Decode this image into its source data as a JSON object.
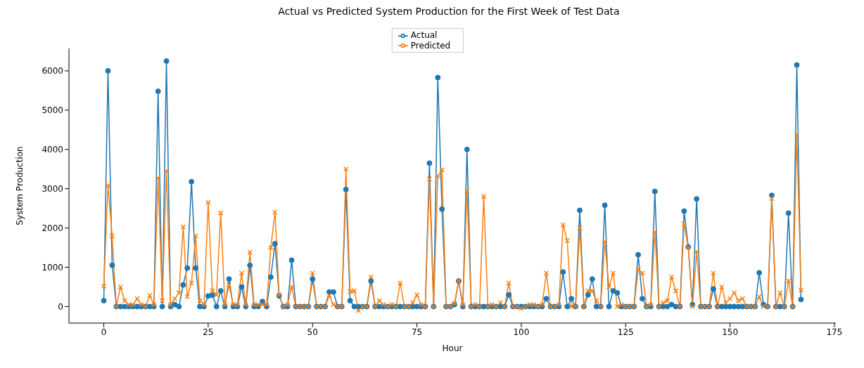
{
  "chart_data": {
    "type": "line",
    "title": "Actual vs Predicted System Production for the First Week of Test Data",
    "xlabel": "Hour",
    "ylabel": "System Production",
    "x": [
      0,
      1,
      2,
      3,
      4,
      5,
      6,
      7,
      8,
      9,
      10,
      11,
      12,
      13,
      14,
      15,
      16,
      17,
      18,
      19,
      20,
      21,
      22,
      23,
      24,
      25,
      26,
      27,
      28,
      29,
      30,
      31,
      32,
      33,
      34,
      35,
      36,
      37,
      38,
      39,
      40,
      41,
      42,
      43,
      44,
      45,
      46,
      47,
      48,
      49,
      50,
      51,
      52,
      53,
      54,
      55,
      56,
      57,
      58,
      59,
      60,
      61,
      62,
      63,
      64,
      65,
      66,
      67,
      68,
      69,
      70,
      71,
      72,
      73,
      74,
      75,
      76,
      77,
      78,
      79,
      80,
      81,
      82,
      83,
      84,
      85,
      86,
      87,
      88,
      89,
      90,
      91,
      92,
      93,
      94,
      95,
      96,
      97,
      98,
      99,
      100,
      101,
      102,
      103,
      104,
      105,
      106,
      107,
      108,
      109,
      110,
      111,
      112,
      113,
      114,
      115,
      116,
      117,
      118,
      119,
      120,
      121,
      122,
      123,
      124,
      125,
      126,
      127,
      128,
      129,
      130,
      131,
      132,
      133,
      134,
      135,
      136,
      137,
      138,
      139,
      140,
      141,
      142,
      143,
      144,
      145,
      146,
      147,
      148,
      149,
      150,
      151,
      152,
      153,
      154,
      155,
      156,
      157,
      158,
      159,
      160,
      161,
      162,
      163,
      164,
      165,
      166,
      167
    ],
    "series": [
      {
        "name": "Actual",
        "color": "#1f77b4",
        "marker": "circle",
        "values": [
          150,
          6000,
          1050,
          0,
          0,
          0,
          0,
          0,
          0,
          0,
          0,
          0,
          0,
          5480,
          0,
          6250,
          0,
          50,
          0,
          550,
          980,
          3180,
          980,
          0,
          0,
          270,
          290,
          0,
          400,
          0,
          700,
          0,
          0,
          500,
          0,
          1050,
          0,
          0,
          130,
          0,
          750,
          1600,
          270,
          0,
          0,
          1180,
          0,
          0,
          0,
          0,
          700,
          0,
          0,
          0,
          370,
          370,
          0,
          0,
          2980,
          150,
          0,
          0,
          0,
          0,
          650,
          0,
          0,
          0,
          0,
          0,
          0,
          0,
          0,
          0,
          0,
          0,
          0,
          0,
          3650,
          0,
          5830,
          2480,
          0,
          0,
          50,
          650,
          0,
          4000,
          0,
          0,
          0,
          0,
          0,
          0,
          0,
          0,
          0,
          300,
          0,
          0,
          0,
          0,
          0,
          0,
          0,
          0,
          200,
          0,
          0,
          0,
          880,
          0,
          200,
          0,
          2450,
          0,
          300,
          700,
          0,
          0,
          2580,
          0,
          400,
          350,
          0,
          0,
          0,
          0,
          1320,
          200,
          0,
          0,
          2930,
          0,
          0,
          0,
          50,
          0,
          0,
          2430,
          1520,
          50,
          2740,
          0,
          0,
          0,
          450,
          0,
          0,
          0,
          0,
          0,
          0,
          0,
          0,
          0,
          0,
          860,
          50,
          0,
          2830,
          0,
          0,
          0,
          2380,
          0,
          6150,
          180
        ]
      },
      {
        "name": "Predicted",
        "color": "#ff7f0e",
        "marker": "cross",
        "values": [
          520,
          3080,
          1800,
          0,
          500,
          150,
          50,
          50,
          200,
          50,
          0,
          280,
          50,
          3270,
          150,
          3450,
          50,
          200,
          350,
          2030,
          250,
          600,
          1800,
          150,
          50,
          2650,
          400,
          300,
          2380,
          50,
          550,
          50,
          50,
          850,
          50,
          1380,
          50,
          50,
          50,
          50,
          1500,
          2400,
          300,
          0,
          50,
          500,
          0,
          0,
          0,
          0,
          850,
          0,
          0,
          0,
          280,
          50,
          0,
          0,
          3500,
          380,
          400,
          -100,
          0,
          0,
          750,
          0,
          150,
          50,
          0,
          50,
          0,
          600,
          0,
          0,
          100,
          300,
          50,
          0,
          3250,
          0,
          3320,
          3480,
          0,
          0,
          80,
          650,
          50,
          2950,
          0,
          50,
          0,
          2800,
          0,
          50,
          0,
          100,
          0,
          600,
          0,
          0,
          -50,
          0,
          50,
          50,
          0,
          50,
          850,
          0,
          0,
          50,
          2080,
          1680,
          0,
          0,
          2000,
          0,
          400,
          400,
          150,
          0,
          1650,
          500,
          850,
          0,
          50,
          0,
          0,
          0,
          950,
          850,
          0,
          50,
          1900,
          0,
          100,
          150,
          750,
          400,
          0,
          2100,
          1500,
          0,
          1400,
          0,
          0,
          0,
          850,
          0,
          500,
          100,
          200,
          350,
          150,
          200,
          0,
          0,
          0,
          250,
          0,
          0,
          2750,
          0,
          350,
          0,
          650,
          0,
          4380,
          420
        ]
      }
    ],
    "xlim": [
      -8.35,
      175.35
    ],
    "xticks": [
      0,
      25,
      50,
      75,
      100,
      125,
      150,
      175
    ],
    "ylim": [
      -420,
      6570
    ],
    "yticks": [
      0,
      1000,
      2000,
      3000,
      4000,
      5000,
      6000
    ],
    "legend": "top",
    "line_style": "solid"
  }
}
